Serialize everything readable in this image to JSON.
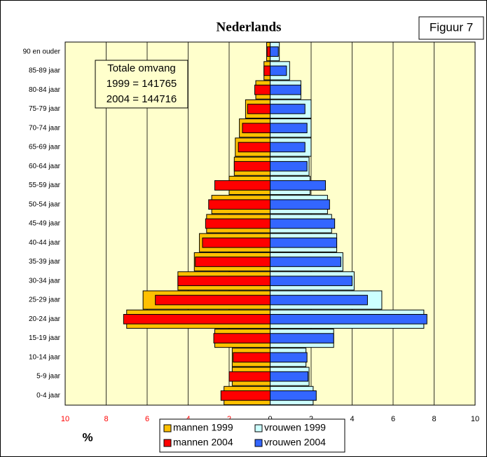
{
  "chart_data": {
    "type": "population-pyramid",
    "title": "Nederlands",
    "figure_label": "Figuur 7",
    "x_label": "%",
    "annotation": [
      "Totale omvang",
      "1999 = 141765",
      "2004 = 144716"
    ],
    "categories": [
      "0-4 jaar",
      "5-9 jaar",
      "10-14 jaar",
      "15-19 jaar",
      "20-24 jaar",
      "25-29 jaar",
      "30-34 jaar",
      "35-39 jaar",
      "40-44 jaar",
      "45-49 jaar",
      "50-54 jaar",
      "55-59 jaar",
      "60-64 jaar",
      "65-69 jaar",
      "70-74 jaar",
      "75-79 jaar",
      "80-84 jaar",
      "85-89 jaar",
      "90 en ouder"
    ],
    "series": [
      {
        "name": "mannen 1999",
        "color": "#ffc000",
        "values": [
          -2.25,
          -1.85,
          -1.85,
          -2.7,
          -7.0,
          -6.2,
          -4.5,
          -3.7,
          -3.45,
          -3.1,
          -2.85,
          -2.0,
          -1.75,
          -1.7,
          -1.5,
          -1.2,
          -0.7,
          -0.3,
          -0.17
        ]
      },
      {
        "name": "vrouwen 1999",
        "color": "#ccffff",
        "values": [
          2.1,
          1.9,
          1.75,
          3.1,
          7.5,
          5.45,
          4.1,
          3.55,
          3.25,
          3.0,
          2.8,
          1.95,
          1.9,
          2.0,
          2.0,
          2.0,
          1.5,
          0.95,
          0.45
        ]
      },
      {
        "name": "mannen 2004",
        "color": "#ff0000",
        "values": [
          -2.4,
          -2.0,
          -1.8,
          -2.75,
          -7.15,
          -5.6,
          -4.5,
          -3.65,
          -3.3,
          -3.15,
          -3.0,
          -2.7,
          -1.75,
          -1.55,
          -1.35,
          -1.1,
          -0.75,
          -0.3,
          -0.15
        ]
      },
      {
        "name": "vrouwen 2004",
        "color": "#3366ff",
        "values": [
          2.25,
          1.85,
          1.8,
          3.1,
          7.65,
          4.75,
          4.0,
          3.45,
          3.25,
          3.15,
          2.9,
          2.7,
          1.8,
          1.7,
          1.8,
          1.7,
          1.5,
          0.8,
          0.4
        ]
      }
    ],
    "xlim": [
      -10,
      10
    ],
    "xticks": [
      {
        "value": -10,
        "label": "10"
      },
      {
        "value": -8,
        "label": "8"
      },
      {
        "value": -6,
        "label": "6"
      },
      {
        "value": -4,
        "label": "4"
      },
      {
        "value": -2,
        "label": "2"
      },
      0,
      2,
      4,
      6,
      8,
      10
    ],
    "negative_tick_color": "#ff0000",
    "grid": true
  }
}
